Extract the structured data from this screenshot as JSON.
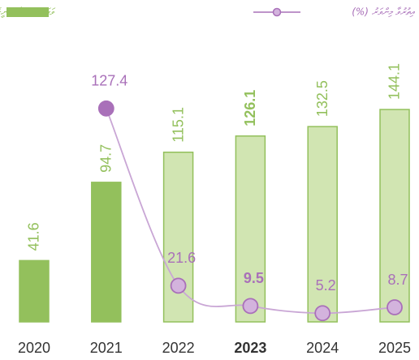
{
  "chart_data": {
    "type": "bar_line",
    "categories": [
      "2020",
      "2021",
      "2022",
      "2023",
      "2024",
      "2025"
    ],
    "series": [
      {
        "name": "ވަޒަންކުރެވޭ އާމްދަނީގެ ބަޖެޓް",
        "type": "bar",
        "color": "#93c05c",
        "fills": [
          "#93c05c",
          "#93c05c",
          "#d1e5b2",
          "#d1e5b2",
          "#d1e5b2",
          "#d1e5b2"
        ],
        "values": [
          41.6,
          94.7,
          115.1,
          126.1,
          132.5,
          144.1
        ]
      },
      {
        "name": "އިތުރުވާ މިންވަރު (%)",
        "type": "line",
        "axis": "y2",
        "color": "#a970b9",
        "marker_fills": [
          null,
          "#a970b9",
          "#d3b3dd",
          "#d3b3dd",
          "#d3b3dd",
          "#d3b3dd"
        ],
        "values": [
          null,
          127.4,
          21.6,
          9.5,
          5.2,
          8.7
        ]
      }
    ],
    "highlight_index": 3,
    "ylim": [
      0,
      200
    ],
    "y2lim": [
      0,
      176
    ],
    "legend": "top",
    "grid": false
  }
}
